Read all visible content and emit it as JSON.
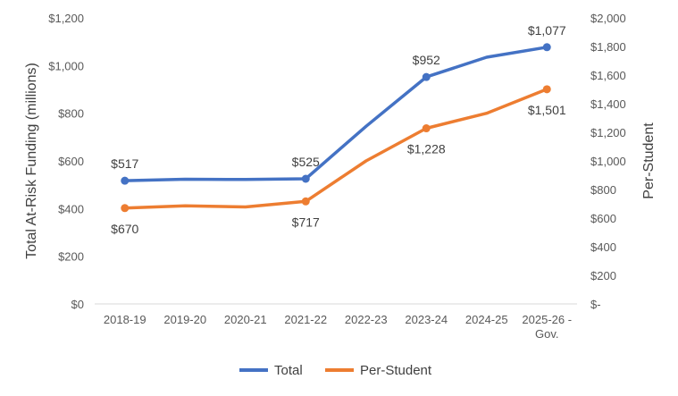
{
  "chart_data": {
    "type": "line",
    "title": "",
    "categories": [
      "2018-19",
      "2019-20",
      "2020-21",
      "2021-22",
      "2022-23",
      "2023-24",
      "2024-25",
      "2025-26 - Gov."
    ],
    "category_lines": [
      [
        "2018-19"
      ],
      [
        "2019-20"
      ],
      [
        "2020-21"
      ],
      [
        "2021-22"
      ],
      [
        "2022-23"
      ],
      [
        "2023-24"
      ],
      [
        "2024-25"
      ],
      [
        "2025-26 -",
        "Gov."
      ]
    ],
    "y_left": {
      "label": "Total At-Risk Funding (millions)",
      "ylim": [
        0,
        1200
      ],
      "ticks": [
        0,
        200,
        400,
        600,
        800,
        1000,
        1200
      ],
      "tick_labels": [
        "$0",
        "$200",
        "$400",
        "$600",
        "$800",
        "$1,000",
        "$1,200"
      ]
    },
    "y_right": {
      "label": "Per-Student",
      "ylim": [
        0,
        2000
      ],
      "ticks": [
        0,
        200,
        400,
        600,
        800,
        1000,
        1200,
        1400,
        1600,
        1800,
        2000
      ],
      "tick_labels": [
        "$-",
        "$200",
        "$400",
        "$600",
        "$800",
        "$1,000",
        "$1,200",
        "$1,400",
        "$1,600",
        "$1,800",
        "$2,000"
      ]
    },
    "grid": false,
    "legend": "bottom",
    "series": [
      {
        "name": "Total",
        "axis": "left",
        "color": "#4472C4",
        "values": [
          517,
          523,
          522,
          525,
          745,
          952,
          1035,
          1077
        ],
        "labels": [
          "$517",
          null,
          null,
          "$525",
          null,
          "$952",
          null,
          "$1,077"
        ]
      },
      {
        "name": "Per-Student",
        "axis": "right",
        "color": "#ED7D31",
        "values": [
          670,
          686,
          678,
          717,
          1000,
          1228,
          1333,
          1501
        ],
        "labels": [
          "$670",
          null,
          null,
          "$717",
          null,
          "$1,228",
          null,
          "$1,501"
        ]
      }
    ]
  }
}
